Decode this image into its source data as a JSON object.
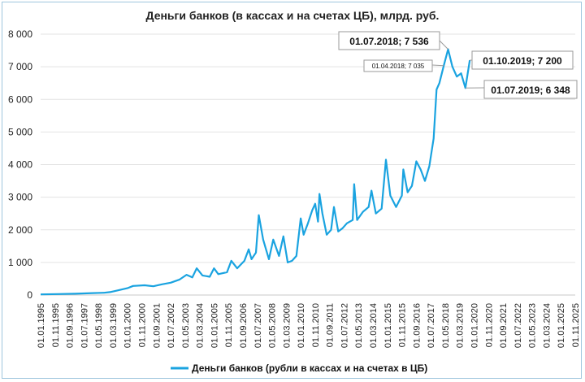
{
  "chart_data": {
    "type": "line",
    "title": "Деньги банков (в кассах и на счетах ЦБ), млрд. руб.",
    "xlabel": "",
    "ylabel": "",
    "ylim": [
      0,
      8000
    ],
    "yticks": [
      "0",
      "1 000",
      "2 000",
      "3 000",
      "4 000",
      "5 000",
      "6 000",
      "7 000",
      "8 000"
    ],
    "xticks": [
      "01.01.1995",
      "01.11.1995",
      "01.09.1996",
      "01.07.1997",
      "01.05.1998",
      "01.03.1999",
      "01.01.2000",
      "01.11.2000",
      "01.09.2001",
      "01.07.2002",
      "01.05.2003",
      "01.03.2004",
      "01.01.2005",
      "01.11.2005",
      "01.09.2006",
      "01.07.2007",
      "01.05.2008",
      "01.03.2009",
      "01.01.2010",
      "01.11.2010",
      "01.09.2011",
      "01.07.2012",
      "01.05.2013",
      "01.03.2014",
      "01.01.2015",
      "01.11.2015",
      "01.09.2016",
      "01.07.2017",
      "01.05.2018",
      "01.03.2019",
      "01.01.2020",
      "01.11.2020",
      "01.09.2021",
      "01.07.2022",
      "01.05.2023",
      "01.03.2024",
      "01.01.2025",
      "01.11.2025"
    ],
    "grid": "horizontal",
    "legend": "bottom",
    "series": [
      {
        "name": "Деньги банков (рубли в кассах и на счетах в ЦБ)",
        "color": "#1aa3e0",
        "points": [
          [
            "01.01.1995",
            20
          ],
          [
            "01.01.1996",
            30
          ],
          [
            "01.01.1997",
            40
          ],
          [
            "01.01.1998",
            60
          ],
          [
            "01.09.1998",
            70
          ],
          [
            "01.01.1999",
            90
          ],
          [
            "01.06.1999",
            140
          ],
          [
            "01.01.2000",
            210
          ],
          [
            "01.05.2000",
            280
          ],
          [
            "01.01.2001",
            300
          ],
          [
            "01.07.2001",
            270
          ],
          [
            "01.01.2002",
            330
          ],
          [
            "01.07.2002",
            380
          ],
          [
            "01.01.2003",
            470
          ],
          [
            "01.06.2003",
            620
          ],
          [
            "01.10.2003",
            540
          ],
          [
            "01.01.2004",
            820
          ],
          [
            "01.05.2004",
            600
          ],
          [
            "01.10.2004",
            560
          ],
          [
            "01.01.2005",
            820
          ],
          [
            "01.04.2005",
            640
          ],
          [
            "01.10.2005",
            700
          ],
          [
            "01.01.2006",
            1050
          ],
          [
            "01.05.2006",
            820
          ],
          [
            "01.10.2006",
            1050
          ],
          [
            "01.01.2007",
            1400
          ],
          [
            "01.03.2007",
            1100
          ],
          [
            "01.06.2007",
            1300
          ],
          [
            "01.08.2007",
            2450
          ],
          [
            "01.11.2007",
            1700
          ],
          [
            "01.01.2008",
            1400
          ],
          [
            "01.03.2008",
            1100
          ],
          [
            "01.06.2008",
            1700
          ],
          [
            "01.10.2008",
            1200
          ],
          [
            "01.01.2009",
            1800
          ],
          [
            "01.04.2009",
            1000
          ],
          [
            "01.07.2009",
            1050
          ],
          [
            "01.10.2009",
            1200
          ],
          [
            "01.01.2010",
            2350
          ],
          [
            "01.03.2010",
            1850
          ],
          [
            "01.06.2010",
            2200
          ],
          [
            "01.09.2010",
            2600
          ],
          [
            "01.11.2010",
            2800
          ],
          [
            "01.01.2011",
            2250
          ],
          [
            "01.02.2011",
            3100
          ],
          [
            "01.04.2011",
            2500
          ],
          [
            "01.07.2011",
            1850
          ],
          [
            "01.10.2011",
            2000
          ],
          [
            "01.12.2011",
            2700
          ],
          [
            "01.03.2012",
            1950
          ],
          [
            "01.06.2012",
            2050
          ],
          [
            "01.09.2012",
            2200
          ],
          [
            "01.01.2013",
            2300
          ],
          [
            "01.02.2013",
            3400
          ],
          [
            "01.04.2013",
            2300
          ],
          [
            "01.08.2013",
            2550
          ],
          [
            "01.12.2013",
            2700
          ],
          [
            "01.02.2014",
            3200
          ],
          [
            "01.05.2014",
            2500
          ],
          [
            "01.09.2014",
            2650
          ],
          [
            "01.12.2014",
            4150
          ],
          [
            "01.03.2015",
            3050
          ],
          [
            "01.07.2015",
            2700
          ],
          [
            "01.11.2015",
            3050
          ],
          [
            "01.12.2015",
            3850
          ],
          [
            "01.03.2016",
            3150
          ],
          [
            "01.06.2016",
            3350
          ],
          [
            "01.09.2016",
            4100
          ],
          [
            "01.12.2016",
            3850
          ],
          [
            "01.03.2017",
            3500
          ],
          [
            "01.06.2017",
            3950
          ],
          [
            "01.09.2017",
            4800
          ],
          [
            "01.11.2017",
            6300
          ],
          [
            "01.01.2018",
            6500
          ],
          [
            "01.04.2018",
            7035
          ],
          [
            "01.07.2018",
            7536
          ],
          [
            "01.10.2018",
            7000
          ],
          [
            "01.01.2019",
            6700
          ],
          [
            "01.04.2019",
            6800
          ],
          [
            "01.07.2019",
            6348
          ],
          [
            "01.10.2019",
            7200
          ]
        ]
      }
    ],
    "annotations": [
      {
        "text": "01.07.2018;  7 536",
        "date": "01.07.2018",
        "value": 7536,
        "size": "large"
      },
      {
        "text": "01.04.2018;  7 035",
        "date": "01.04.2018",
        "value": 7035,
        "size": "small"
      },
      {
        "text": "01.10.2019;  7 200",
        "date": "01.10.2019",
        "value": 7200,
        "size": "large"
      },
      {
        "text": "01.07.2019;  6 348",
        "date": "01.07.2019",
        "value": 6348,
        "size": "large"
      }
    ]
  }
}
